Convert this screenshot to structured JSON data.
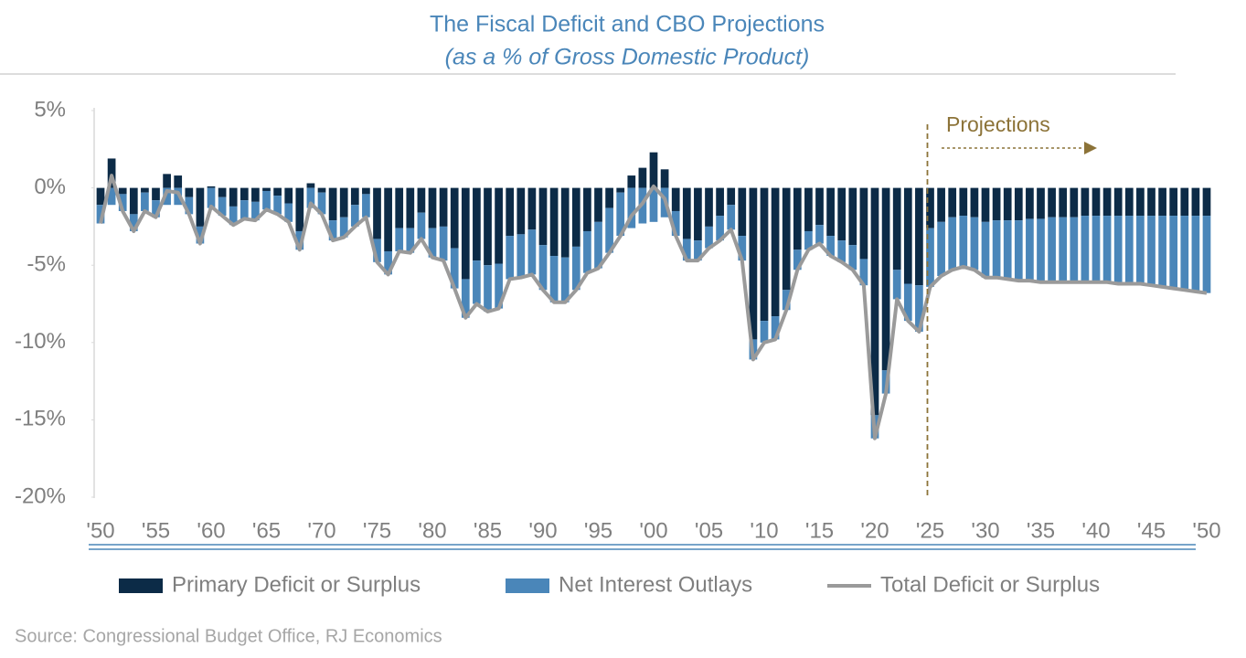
{
  "chart_data": {
    "type": "bar",
    "title": "The Fiscal Deficit and CBO Projections",
    "subtitle": "(as a % of Gross Domestic Product)",
    "source": "Source: Congressional Budget Office, RJ Economics",
    "annotations": [
      {
        "text": "Projections"
      }
    ],
    "categories": [
      "'50",
      null,
      null,
      null,
      null,
      "'55",
      null,
      null,
      null,
      null,
      "'60",
      null,
      null,
      null,
      null,
      "'65",
      null,
      null,
      null,
      null,
      "'70",
      null,
      null,
      null,
      null,
      "'75",
      null,
      null,
      null,
      null,
      "'80",
      null,
      null,
      null,
      null,
      "'85",
      null,
      null,
      null,
      null,
      "'90",
      null,
      null,
      null,
      null,
      "'95",
      null,
      null,
      null,
      null,
      "'00",
      null,
      null,
      null,
      null,
      "'05",
      null,
      null,
      null,
      null,
      "'10",
      null,
      null,
      null,
      null,
      "'15",
      null,
      null,
      null,
      null,
      "'20",
      null,
      null,
      null,
      null,
      "'25",
      null,
      null,
      null,
      null,
      "'30",
      null,
      null,
      null,
      null,
      "'35",
      null,
      null,
      null,
      null,
      "'40",
      null,
      null,
      null,
      null,
      "'45",
      null,
      null,
      null,
      null,
      "'50"
    ],
    "series": [
      {
        "name": "Primary Deficit or Surplus",
        "type": "bar",
        "color": "#0c2b47",
        "values": [
          -1.1,
          1.9,
          -0.4,
          -1.7,
          -0.3,
          -0.8,
          0.9,
          0.8,
          -0.6,
          -2.5,
          0.1,
          -0.6,
          -1.2,
          -0.8,
          -0.9,
          -0.2,
          -0.5,
          -1.0,
          -2.8,
          0.3,
          -0.3,
          -2.1,
          -1.9,
          -1.1,
          -0.4,
          -3.3,
          -4.1,
          -2.6,
          -2.6,
          -1.6,
          -2.6,
          -2.5,
          -3.9,
          -5.9,
          -4.7,
          -5.0,
          -4.9,
          -3.1,
          -3.0,
          -2.7,
          -3.7,
          -4.4,
          -4.5,
          -3.8,
          -2.8,
          -2.2,
          -1.3,
          -0.3,
          0.8,
          1.3,
          2.3,
          1.2,
          -1.5,
          -3.3,
          -3.4,
          -2.5,
          -1.8,
          -1.1,
          -3.1,
          -9.8,
          -8.6,
          -8.3,
          -6.6,
          -4.0,
          -2.8,
          -2.4,
          -3.1,
          -3.4,
          -3.7,
          -4.6,
          -14.7,
          -11.8,
          -5.3,
          -6.2,
          -6.3,
          -2.6,
          -2.2,
          -1.9,
          -1.8,
          -1.9,
          -2.2,
          -2.1,
          -2.1,
          -2.1,
          -2.0,
          -2.0,
          -1.9,
          -1.9,
          -1.9,
          -1.8,
          -1.8,
          -1.8,
          -1.8,
          -1.8,
          -1.8,
          -1.8,
          -1.8,
          -1.8,
          -1.8,
          -1.8,
          -1.8
        ]
      },
      {
        "name": "Net Interest Outlays",
        "type": "bar",
        "color": "#4a86b9",
        "values": [
          -1.2,
          -1.1,
          -1.1,
          -1.1,
          -1.2,
          -1.1,
          -1.1,
          -1.1,
          -1.1,
          -1.1,
          -1.3,
          -1.2,
          -1.2,
          -1.2,
          -1.2,
          -1.2,
          -1.2,
          -1.2,
          -1.2,
          -1.3,
          -1.4,
          -1.3,
          -1.3,
          -1.4,
          -1.5,
          -1.5,
          -1.5,
          -1.5,
          -1.6,
          -1.7,
          -1.9,
          -2.2,
          -2.6,
          -2.5,
          -2.8,
          -3.0,
          -2.9,
          -2.8,
          -2.8,
          -2.9,
          -2.9,
          -3.0,
          -2.9,
          -2.8,
          -2.7,
          -3.0,
          -2.9,
          -2.8,
          -2.6,
          -2.3,
          -2.2,
          -1.9,
          -1.6,
          -1.4,
          -1.3,
          -1.4,
          -1.6,
          -1.6,
          -1.6,
          -1.3,
          -1.4,
          -1.5,
          -1.3,
          -1.3,
          -1.2,
          -1.2,
          -1.3,
          -1.4,
          -1.6,
          -1.7,
          -1.5,
          -1.5,
          -1.9,
          -2.4,
          -3.0,
          -3.8,
          -3.5,
          -3.4,
          -3.3,
          -3.4,
          -3.6,
          -3.7,
          -3.8,
          -3.9,
          -4.0,
          -4.1,
          -4.2,
          -4.2,
          -4.2,
          -4.3,
          -4.3,
          -4.3,
          -4.4,
          -4.4,
          -4.4,
          -4.5,
          -4.6,
          -4.7,
          -4.8,
          -4.9,
          -5.0
        ]
      },
      {
        "name": "Total Deficit or Surplus",
        "type": "line",
        "color": "#9a9a9a",
        "values": [
          -2.3,
          0.8,
          -1.5,
          -2.8,
          -1.5,
          -1.9,
          -0.2,
          -0.3,
          -1.7,
          -3.6,
          -1.2,
          -1.8,
          -2.4,
          -2.0,
          -2.1,
          -1.4,
          -1.7,
          -2.2,
          -4.0,
          -1.0,
          -1.7,
          -3.4,
          -3.2,
          -2.5,
          -1.9,
          -4.8,
          -5.6,
          -4.1,
          -4.2,
          -3.3,
          -4.5,
          -4.7,
          -6.5,
          -8.4,
          -7.5,
          -8.0,
          -7.8,
          -5.9,
          -5.8,
          -5.6,
          -6.6,
          -7.4,
          -7.4,
          -6.6,
          -5.5,
          -5.2,
          -4.2,
          -3.1,
          -1.8,
          -1.0,
          0.1,
          -0.7,
          -3.1,
          -4.7,
          -4.7,
          -3.9,
          -3.4,
          -2.7,
          -4.7,
          -11.1,
          -10.0,
          -9.8,
          -7.9,
          -5.3,
          -4.0,
          -3.6,
          -4.4,
          -4.8,
          -5.3,
          -6.3,
          -16.2,
          -13.3,
          -7.2,
          -8.6,
          -9.3,
          -6.4,
          -5.7,
          -5.3,
          -5.1,
          -5.3,
          -5.8,
          -5.8,
          -5.9,
          -6.0,
          -6.0,
          -6.1,
          -6.1,
          -6.1,
          -6.1,
          -6.1,
          -6.1,
          -6.1,
          -6.2,
          -6.2,
          -6.2,
          -6.3,
          -6.4,
          -6.5,
          -6.6,
          -6.7,
          -6.8
        ]
      }
    ],
    "ylim": [
      -20,
      5
    ],
    "yticks": [
      {
        "value": 5,
        "label": "5%"
      },
      {
        "value": 0,
        "label": "0%"
      },
      {
        "value": -5,
        "label": "-5%"
      },
      {
        "value": -10,
        "label": "-10%"
      },
      {
        "value": -15,
        "label": "-15%"
      },
      {
        "value": -20,
        "label": "-20%"
      }
    ],
    "grid": false
  }
}
